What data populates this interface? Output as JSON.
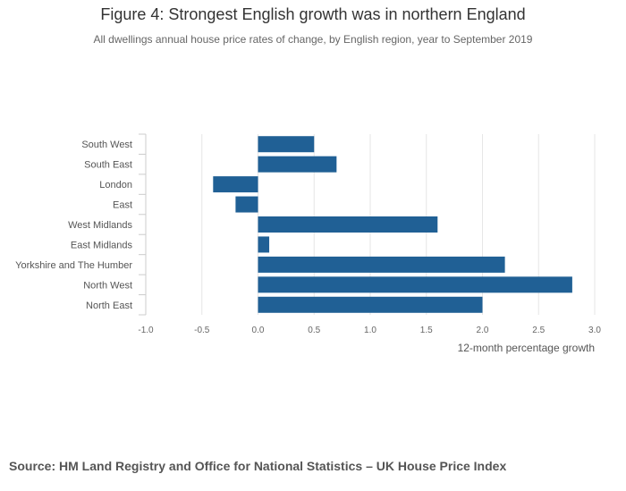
{
  "title": "Figure 4: Strongest English growth was in northern England",
  "subtitle": "All dwellings annual house price rates of change, by English region, year to September 2019",
  "source": "Source: HM Land Registry and Office for National Statistics – UK House Price Index",
  "chart_data": {
    "type": "bar",
    "orientation": "horizontal",
    "categories": [
      "South West",
      "South East",
      "London",
      "East",
      "West Midlands",
      "East Midlands",
      "Yorkshire and The Humber",
      "North West",
      "North East"
    ],
    "values": [
      0.5,
      0.7,
      -0.4,
      -0.2,
      1.6,
      0.1,
      2.2,
      2.8,
      2.0
    ],
    "xlabel": "12-month percentage growth",
    "ylabel": "",
    "xlim": [
      -1.0,
      3.0
    ],
    "xticks": [
      -1.0,
      -0.5,
      0.0,
      0.5,
      1.0,
      1.5,
      2.0,
      2.5,
      3.0
    ],
    "xtick_labels": [
      "-1.0",
      "-0.5",
      "0.0",
      "0.5",
      "1.0",
      "1.5",
      "2.0",
      "2.5",
      "3.0"
    ],
    "grid": true,
    "bar_color": "#206095"
  }
}
